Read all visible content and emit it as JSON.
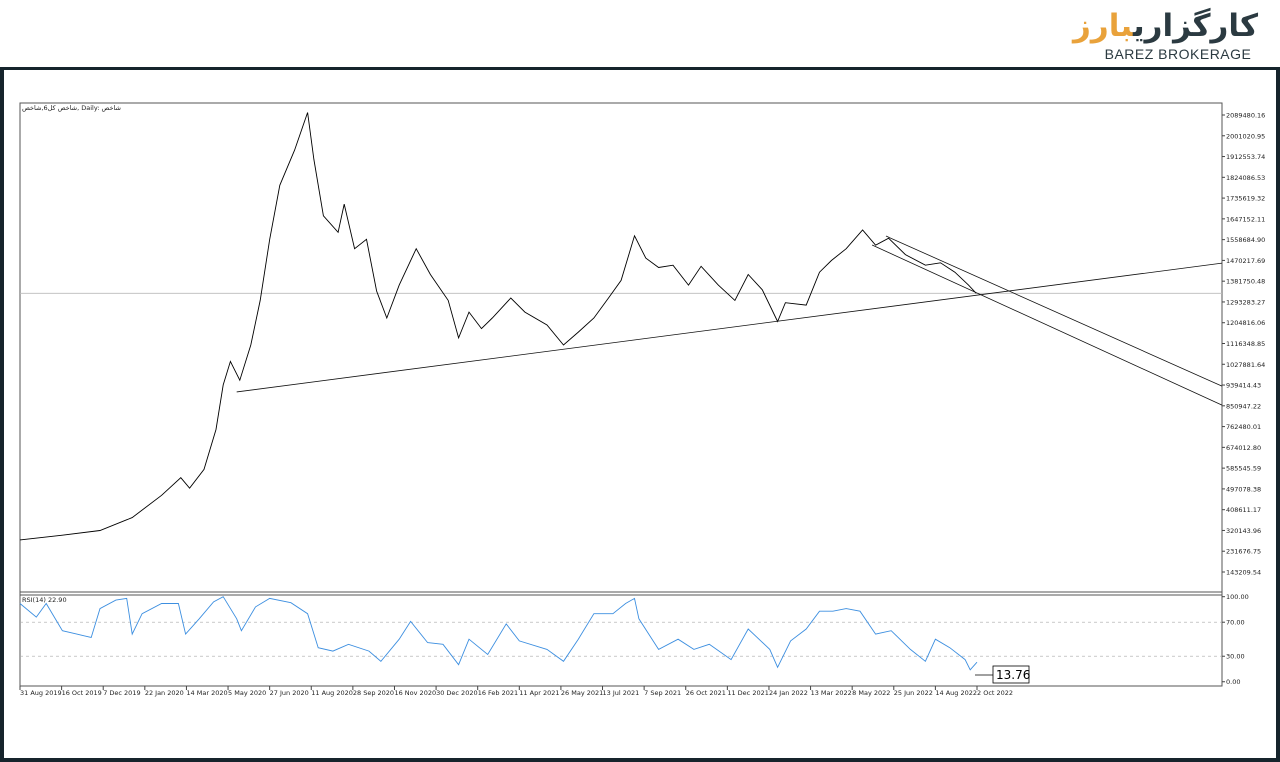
{
  "logo": {
    "fa_dark": "کارگزاری",
    "fa_orange": "بارز",
    "en": "BAREZ BROKERAGE",
    "colors": {
      "dark": "#2b3a41",
      "orange": "#e9a23b"
    }
  },
  "chart_data": [
    {
      "type": "line",
      "title": "شاخص كل6,شاخص, Daily: شاخص",
      "xlabel": "",
      "ylabel": "",
      "ylim": [
        58000,
        2140600
      ],
      "grid": false,
      "color": "#000000",
      "yticks": [
        "2089480.16",
        "2001020.95",
        "1912553.74",
        "1824086.53",
        "1735619.32",
        "1647152.11",
        "1558684.90",
        "1470217.69",
        "1381750.48",
        "1293283.27",
        "1204816.06",
        "1116348.85",
        "1027881.64",
        "939414.43",
        "850947.22",
        "762480.01",
        "674012.80",
        "585545.59",
        "497078.38",
        "408611.17",
        "320143.96",
        "231676.75",
        "143209.54"
      ],
      "xticks": [
        "31 Aug 2019",
        "16 Oct 2019",
        "7 Dec 2019",
        "22 Jan 2020",
        "14 Mar 2020",
        "5 May 2020",
        "27 Jun 2020",
        "11 Aug 2020",
        "28 Sep 2020",
        "16 Nov 2020",
        "30 Dec 2020",
        "16 Feb 2021",
        "11 Apr 2021",
        "26 May 2021",
        "13 Jul 2021",
        "7 Sep 2021",
        "26 Oct 2021",
        "11 Dec 2021",
        "24 Jan 2022",
        "13 Mar 2022",
        "8 May 2022",
        "25 Jun 2022",
        "14 Aug 2022",
        "2 Oct 2022"
      ],
      "xtick_dates": [
        "2019-08-31",
        "2019-10-16",
        "2019-12-07",
        "2020-01-22",
        "2020-03-14",
        "2020-05-05",
        "2020-06-27",
        "2020-08-11",
        "2020-09-28",
        "2020-11-16",
        "2020-12-30",
        "2021-02-16",
        "2021-04-11",
        "2021-05-26",
        "2021-07-13",
        "2021-09-07",
        "2021-10-26",
        "2021-12-11",
        "2022-01-24",
        "2022-03-13",
        "2022-05-08",
        "2022-06-25",
        "2022-08-14",
        "2022-10-02"
      ],
      "series": [
        {
          "x": [
            "2019-08-31",
            "2019-10-17",
            "2019-12-03",
            "2020-01-08",
            "2020-02-12",
            "2020-03-07",
            "2020-03-18",
            "2020-04-05",
            "2020-04-20",
            "2020-04-29",
            "2020-05-08",
            "2020-05-20",
            "2020-06-03",
            "2020-06-15",
            "2020-06-27",
            "2020-07-08",
            "2020-07-24",
            "2020-08-07",
            "2020-08-14",
            "2020-08-25",
            "2020-09-11",
            "2020-09-18",
            "2020-09-30",
            "2020-10-14",
            "2020-10-26",
            "2020-11-07",
            "2020-11-21",
            "2020-12-09",
            "2020-12-24",
            "2021-01-13",
            "2021-01-25",
            "2021-02-06",
            "2021-02-21",
            "2021-03-07",
            "2021-03-31",
            "2021-04-17",
            "2021-05-11",
            "2021-05-29",
            "2021-06-15",
            "2021-07-03",
            "2021-07-21",
            "2021-08-07",
            "2021-08-25",
            "2021-09-09",
            "2021-09-24",
            "2021-10-11",
            "2021-10-29",
            "2021-11-12",
            "2021-12-01",
            "2021-12-19",
            "2022-01-02",
            "2022-01-17",
            "2022-02-03",
            "2022-02-12",
            "2022-03-08",
            "2022-03-25",
            "2022-04-10",
            "2022-04-30",
            "2022-05-20",
            "2022-06-04",
            "2022-06-19",
            "2022-07-09",
            "2022-08-02",
            "2022-08-20",
            "2022-09-06",
            "2022-09-22",
            "2022-10-01"
          ],
          "y": [
            280000,
            300000,
            320000,
            375000,
            470000,
            545000,
            500000,
            580000,
            750000,
            940000,
            1040000,
            960000,
            1110000,
            1300000,
            1560000,
            1790000,
            1940000,
            2100000,
            1900000,
            1660000,
            1590000,
            1710000,
            1520000,
            1560000,
            1340000,
            1225000,
            1365000,
            1520000,
            1410000,
            1300000,
            1140000,
            1250000,
            1180000,
            1225000,
            1310000,
            1250000,
            1195000,
            1110000,
            1165000,
            1225000,
            1310000,
            1385000,
            1575000,
            1480000,
            1440000,
            1450000,
            1365000,
            1445000,
            1365000,
            1300000,
            1410000,
            1345000,
            1210000,
            1290000,
            1280000,
            1420000,
            1470000,
            1520000,
            1600000,
            1535000,
            1565000,
            1495000,
            1450000,
            1460000,
            1420000,
            1365000,
            1330000
          ]
        }
      ],
      "trendlines": [
        {
          "from": [
            "2020-05-16",
            910000
          ],
          "to": [
            "2022-10-01",
            1321700
          ]
        },
        {
          "from": [
            "2022-06-16",
            1574000
          ],
          "to": [
            "2022-10-02",
            1400800
          ]
        },
        {
          "from": [
            "2022-05-31",
            1535800
          ],
          "to": [
            "2022-10-02",
            1331400
          ]
        }
      ],
      "current_price_line": 1330000
    },
    {
      "type": "line",
      "title": "RSI(14) 22.90",
      "ylim": [
        -5,
        102
      ],
      "color": "#3d8fe0",
      "yticks": [
        "100.00",
        "70.00",
        "30.00",
        "0.00"
      ],
      "levels": [
        70,
        30
      ],
      "annotation": "13.76",
      "series": [
        {
          "x": [
            "2019-08-31",
            "2019-09-18",
            "2019-09-29",
            "2019-10-17",
            "2019-11-04",
            "2019-11-22",
            "2019-12-03",
            "2019-12-21",
            "2020-01-02",
            "2020-01-08",
            "2020-01-19",
            "2020-02-12",
            "2020-03-04",
            "2020-03-13",
            "2020-03-30",
            "2020-04-17",
            "2020-04-29",
            "2020-05-16",
            "2020-05-22",
            "2020-06-09",
            "2020-06-27",
            "2020-07-20",
            "2020-08-07",
            "2020-08-19",
            "2020-09-05",
            "2020-09-23",
            "2020-10-17",
            "2020-10-31",
            "2020-11-21",
            "2020-12-03",
            "2020-12-21",
            "2021-01-07",
            "2021-01-25",
            "2021-02-06",
            "2021-03-01",
            "2021-03-25",
            "2021-04-11",
            "2021-05-11",
            "2021-05-29",
            "2021-06-15",
            "2021-07-03",
            "2021-07-27",
            "2021-08-13",
            "2021-08-25",
            "2021-08-31",
            "2021-09-24",
            "2021-10-17",
            "2021-11-04",
            "2021-11-21",
            "2021-12-15",
            "2022-01-02",
            "2022-01-25",
            "2022-02-03",
            "2022-02-18",
            "2022-03-08",
            "2022-03-25",
            "2022-04-12",
            "2022-04-30",
            "2022-05-17",
            "2022-06-04",
            "2022-06-22",
            "2022-07-15",
            "2022-08-02",
            "2022-08-14",
            "2022-08-31",
            "2022-09-18",
            "2022-09-24",
            "2022-10-02"
          ],
          "y": [
            92,
            76,
            92,
            60,
            56,
            52,
            86,
            96,
            98,
            56,
            80,
            92,
            92,
            56,
            74,
            94,
            100,
            74,
            60,
            88,
            98,
            93,
            80,
            40,
            36,
            44,
            36,
            24,
            50,
            71,
            46,
            44,
            20,
            50,
            32,
            68,
            48,
            38,
            24,
            50,
            80,
            80,
            92,
            98,
            74,
            38,
            50,
            38,
            44,
            26,
            62,
            38,
            17,
            48,
            62,
            83,
            83,
            86,
            83,
            56,
            60,
            38,
            24,
            50,
            40,
            26,
            14,
            23
          ]
        }
      ]
    }
  ]
}
